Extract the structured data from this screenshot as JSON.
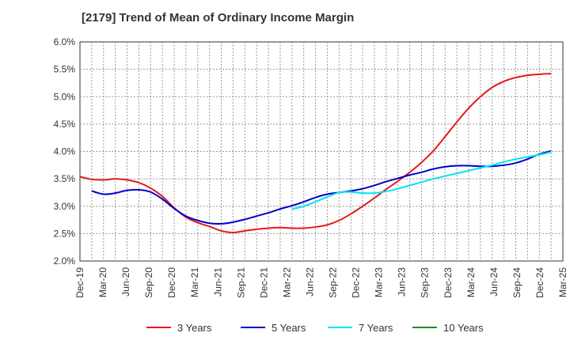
{
  "chart_data": {
    "type": "line",
    "title": "[2179]  Trend of Mean of Ordinary Income Margin",
    "xlabel": "",
    "ylabel": "",
    "ylim": [
      2.0,
      6.0
    ],
    "y_ticks": [
      "2.0%",
      "2.5%",
      "3.0%",
      "3.5%",
      "4.0%",
      "4.5%",
      "5.0%",
      "5.5%",
      "6.0%"
    ],
    "x_ticks": [
      "Dec-19",
      "Mar-20",
      "Jun-20",
      "Sep-20",
      "Dec-20",
      "Mar-21",
      "Jun-21",
      "Sep-21",
      "Dec-21",
      "Mar-22",
      "Jun-22",
      "Sep-22",
      "Dec-22",
      "Mar-23",
      "Jun-23",
      "Sep-23",
      "Dec-23",
      "Mar-24",
      "Jun-24",
      "Sep-24",
      "Dec-24",
      "Mar-25"
    ],
    "grid": "dotted",
    "legend_position": "bottom",
    "series": [
      {
        "name": "3 Years",
        "color": "#e41a1c",
        "values": [
          3.54,
          3.49,
          3.48,
          3.5,
          3.48,
          3.43,
          3.33,
          3.18,
          2.97,
          2.8,
          2.7,
          2.63,
          2.55,
          2.52,
          2.55,
          2.58,
          2.6,
          2.61,
          2.6,
          2.6,
          2.62,
          2.66,
          2.74,
          2.86,
          3.0,
          3.15,
          3.31,
          3.46,
          3.62,
          3.8,
          4.01,
          4.27,
          4.54,
          4.79,
          5.0,
          5.17,
          5.28,
          5.35,
          5.39,
          5.41,
          5.42,
          null
        ]
      },
      {
        "name": "5 Years",
        "color": "#0000cc",
        "values": [
          null,
          3.28,
          3.22,
          3.24,
          3.29,
          3.3,
          3.26,
          3.13,
          2.96,
          2.82,
          2.74,
          2.69,
          2.68,
          2.71,
          2.76,
          2.82,
          2.88,
          2.95,
          3.01,
          3.08,
          3.16,
          3.22,
          3.25,
          3.28,
          3.32,
          3.38,
          3.45,
          3.51,
          3.57,
          3.62,
          3.68,
          3.72,
          3.74,
          3.74,
          3.73,
          3.73,
          3.75,
          3.79,
          3.86,
          3.95,
          4.01,
          null
        ]
      },
      {
        "name": "7 Years",
        "color": "#00e5ee",
        "values": [
          null,
          null,
          null,
          null,
          null,
          null,
          null,
          null,
          null,
          null,
          null,
          null,
          null,
          null,
          null,
          null,
          null,
          null,
          2.95,
          3.0,
          3.08,
          3.17,
          3.25,
          3.26,
          3.24,
          3.24,
          3.27,
          3.32,
          3.38,
          3.44,
          3.5,
          3.55,
          3.6,
          3.65,
          3.7,
          3.75,
          3.81,
          3.86,
          3.9,
          3.94,
          3.99,
          null
        ]
      },
      {
        "name": "10 Years",
        "color": "#228b22",
        "values": []
      }
    ]
  }
}
